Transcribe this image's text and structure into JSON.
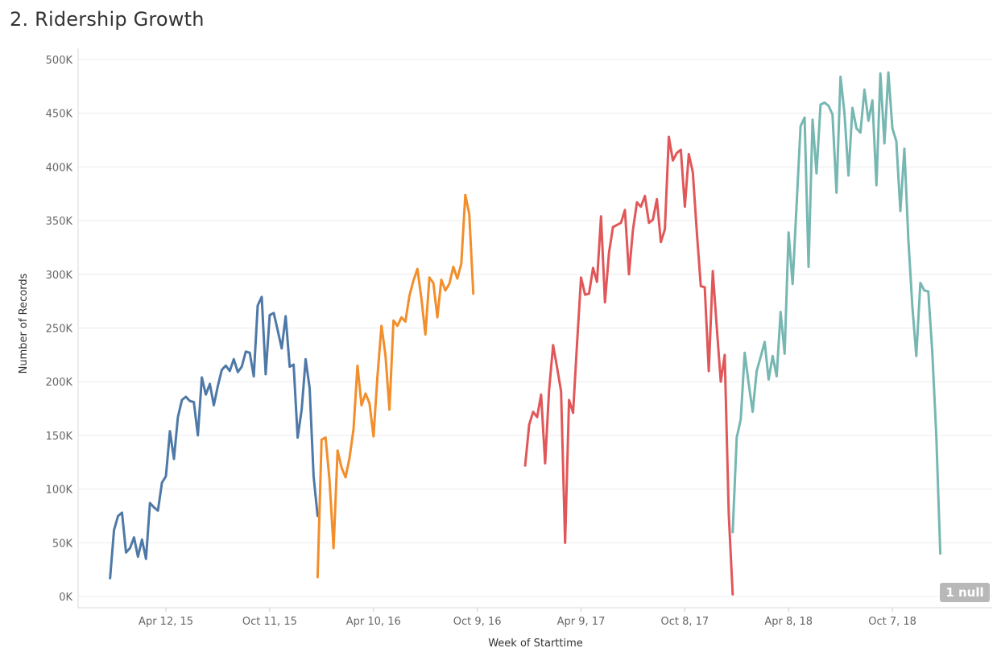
{
  "chart_data": {
    "type": "line",
    "title": "2. Ridership Growth",
    "xlabel": "Week of Starttime",
    "ylabel": "Number of Records",
    "ylim": [
      0,
      500000
    ],
    "yticks": [
      0,
      50000,
      100000,
      150000,
      200000,
      250000,
      300000,
      350000,
      400000,
      450000,
      500000
    ],
    "ytick_labels": [
      "0K",
      "50K",
      "100K",
      "150K",
      "200K",
      "250K",
      "300K",
      "350K",
      "400K",
      "450K",
      "500K"
    ],
    "xticks": [
      "2015-04-12",
      "2015-10-11",
      "2016-04-10",
      "2016-10-09",
      "2017-04-09",
      "2017-10-08",
      "2018-04-08",
      "2018-10-07"
    ],
    "xtick_labels": [
      "Apr 12, 15",
      "Oct 11, 15",
      "Apr 10, 16",
      "Oct 9, 16",
      "Apr 9, 17",
      "Oct 8, 17",
      "Apr 8, 18",
      "Oct 7, 18"
    ],
    "xlim": [
      "2014-11-09",
      "2019-03-31"
    ],
    "grid": true,
    "null_indicator": "1 null",
    "series": [
      {
        "color": "#4e79a7",
        "points": [
          [
            "2015-01-04",
            17000
          ],
          [
            "2015-01-11",
            62000
          ],
          [
            "2015-01-18",
            75000
          ],
          [
            "2015-01-25",
            78000
          ],
          [
            "2015-02-01",
            41000
          ],
          [
            "2015-02-08",
            45000
          ],
          [
            "2015-02-15",
            55000
          ],
          [
            "2015-02-22",
            37000
          ],
          [
            "2015-03-01",
            53000
          ],
          [
            "2015-03-08",
            35000
          ],
          [
            "2015-03-15",
            87000
          ],
          [
            "2015-03-22",
            83000
          ],
          [
            "2015-03-29",
            80000
          ],
          [
            "2015-04-05",
            106000
          ],
          [
            "2015-04-12",
            112000
          ],
          [
            "2015-04-19",
            154000
          ],
          [
            "2015-04-26",
            128000
          ],
          [
            "2015-05-03",
            167000
          ],
          [
            "2015-05-10",
            183000
          ],
          [
            "2015-05-17",
            186000
          ],
          [
            "2015-05-24",
            182000
          ],
          [
            "2015-05-31",
            181000
          ],
          [
            "2015-06-07",
            150000
          ],
          [
            "2015-06-14",
            204000
          ],
          [
            "2015-06-21",
            188000
          ],
          [
            "2015-06-28",
            198000
          ],
          [
            "2015-07-05",
            178000
          ],
          [
            "2015-07-12",
            196000
          ],
          [
            "2015-07-19",
            211000
          ],
          [
            "2015-07-26",
            215000
          ],
          [
            "2015-08-02",
            210000
          ],
          [
            "2015-08-09",
            221000
          ],
          [
            "2015-08-16",
            209000
          ],
          [
            "2015-08-23",
            214000
          ],
          [
            "2015-08-30",
            228000
          ],
          [
            "2015-09-06",
            227000
          ],
          [
            "2015-09-13",
            205000
          ],
          [
            "2015-09-20",
            271000
          ],
          [
            "2015-09-27",
            279000
          ],
          [
            "2015-10-04",
            207000
          ],
          [
            "2015-10-11",
            262000
          ],
          [
            "2015-10-18",
            264000
          ],
          [
            "2015-10-25",
            248000
          ],
          [
            "2015-11-01",
            231000
          ],
          [
            "2015-11-08",
            261000
          ],
          [
            "2015-11-15",
            214000
          ],
          [
            "2015-11-22",
            216000
          ],
          [
            "2015-11-29",
            148000
          ],
          [
            "2015-12-06",
            174000
          ],
          [
            "2015-12-13",
            221000
          ],
          [
            "2015-12-20",
            194000
          ],
          [
            "2015-12-27",
            112000
          ],
          [
            "2016-01-03",
            75000
          ]
        ]
      },
      {
        "color": "#f28e2b",
        "points": [
          [
            "2016-01-03",
            18000
          ],
          [
            "2016-01-10",
            146000
          ],
          [
            "2016-01-17",
            148000
          ],
          [
            "2016-01-24",
            108000
          ],
          [
            "2016-01-31",
            45000
          ],
          [
            "2016-02-07",
            136000
          ],
          [
            "2016-02-14",
            120000
          ],
          [
            "2016-02-21",
            111000
          ],
          [
            "2016-02-28",
            129000
          ],
          [
            "2016-03-06",
            156000
          ],
          [
            "2016-03-13",
            215000
          ],
          [
            "2016-03-20",
            178000
          ],
          [
            "2016-03-27",
            189000
          ],
          [
            "2016-04-03",
            180000
          ],
          [
            "2016-04-10",
            149000
          ],
          [
            "2016-04-17",
            205000
          ],
          [
            "2016-04-24",
            252000
          ],
          [
            "2016-05-01",
            225000
          ],
          [
            "2016-05-08",
            174000
          ],
          [
            "2016-05-15",
            257000
          ],
          [
            "2016-05-22",
            252000
          ],
          [
            "2016-05-29",
            260000
          ],
          [
            "2016-06-05",
            256000
          ],
          [
            "2016-06-12",
            280000
          ],
          [
            "2016-06-19",
            294000
          ],
          [
            "2016-06-26",
            305000
          ],
          [
            "2016-07-03",
            278000
          ],
          [
            "2016-07-10",
            244000
          ],
          [
            "2016-07-17",
            297000
          ],
          [
            "2016-07-24",
            292000
          ],
          [
            "2016-07-31",
            260000
          ],
          [
            "2016-08-07",
            295000
          ],
          [
            "2016-08-14",
            285000
          ],
          [
            "2016-08-21",
            291000
          ],
          [
            "2016-08-28",
            307000
          ],
          [
            "2016-09-04",
            296000
          ],
          [
            "2016-09-11",
            310000
          ],
          [
            "2016-09-18",
            374000
          ],
          [
            "2016-09-25",
            356000
          ],
          [
            "2016-10-02",
            282000
          ]
        ]
      },
      {
        "color": "#e15759",
        "points": [
          [
            "2017-01-01",
            122000
          ],
          [
            "2017-01-08",
            160000
          ],
          [
            "2017-01-15",
            172000
          ],
          [
            "2017-01-22",
            167000
          ],
          [
            "2017-01-29",
            188000
          ],
          [
            "2017-02-05",
            124000
          ],
          [
            "2017-02-12",
            192000
          ],
          [
            "2017-02-19",
            234000
          ],
          [
            "2017-02-26",
            213000
          ],
          [
            "2017-03-05",
            191000
          ],
          [
            "2017-03-12",
            50000
          ],
          [
            "2017-03-19",
            183000
          ],
          [
            "2017-03-26",
            171000
          ],
          [
            "2017-04-02",
            235000
          ],
          [
            "2017-04-09",
            297000
          ],
          [
            "2017-04-16",
            281000
          ],
          [
            "2017-04-23",
            282000
          ],
          [
            "2017-04-30",
            306000
          ],
          [
            "2017-05-07",
            293000
          ],
          [
            "2017-05-14",
            354000
          ],
          [
            "2017-05-21",
            274000
          ],
          [
            "2017-05-28",
            320000
          ],
          [
            "2017-06-04",
            344000
          ],
          [
            "2017-06-11",
            346000
          ],
          [
            "2017-06-18",
            348000
          ],
          [
            "2017-06-25",
            360000
          ],
          [
            "2017-07-02",
            300000
          ],
          [
            "2017-07-09",
            341000
          ],
          [
            "2017-07-16",
            367000
          ],
          [
            "2017-07-23",
            363000
          ],
          [
            "2017-07-30",
            373000
          ],
          [
            "2017-08-06",
            348000
          ],
          [
            "2017-08-13",
            351000
          ],
          [
            "2017-08-20",
            370000
          ],
          [
            "2017-08-27",
            330000
          ],
          [
            "2017-09-03",
            342000
          ],
          [
            "2017-09-10",
            428000
          ],
          [
            "2017-09-17",
            406000
          ],
          [
            "2017-09-24",
            413000
          ],
          [
            "2017-10-01",
            416000
          ],
          [
            "2017-10-08",
            363000
          ],
          [
            "2017-10-15",
            412000
          ],
          [
            "2017-10-22",
            395000
          ],
          [
            "2017-10-29",
            340000
          ],
          [
            "2017-11-05",
            289000
          ],
          [
            "2017-11-12",
            288000
          ],
          [
            "2017-11-19",
            210000
          ],
          [
            "2017-11-26",
            303000
          ],
          [
            "2017-12-03",
            251000
          ],
          [
            "2017-12-10",
            200000
          ],
          [
            "2017-12-17",
            225000
          ],
          [
            "2017-12-24",
            77000
          ],
          [
            "2017-12-31",
            2000
          ]
        ]
      },
      {
        "color": "#76b7b2",
        "points": [
          [
            "2017-12-31",
            60000
          ],
          [
            "2018-01-07",
            148000
          ],
          [
            "2018-01-14",
            165000
          ],
          [
            "2018-01-21",
            227000
          ],
          [
            "2018-01-28",
            198000
          ],
          [
            "2018-02-04",
            172000
          ],
          [
            "2018-02-11",
            210000
          ],
          [
            "2018-02-18",
            223000
          ],
          [
            "2018-02-25",
            237000
          ],
          [
            "2018-03-04",
            202000
          ],
          [
            "2018-03-11",
            224000
          ],
          [
            "2018-03-18",
            205000
          ],
          [
            "2018-03-25",
            265000
          ],
          [
            "2018-04-01",
            226000
          ],
          [
            "2018-04-08",
            339000
          ],
          [
            "2018-04-15",
            291000
          ],
          [
            "2018-04-22",
            364000
          ],
          [
            "2018-04-29",
            438000
          ],
          [
            "2018-05-06",
            446000
          ],
          [
            "2018-05-13",
            307000
          ],
          [
            "2018-05-20",
            444000
          ],
          [
            "2018-05-27",
            394000
          ],
          [
            "2018-06-03",
            458000
          ],
          [
            "2018-06-10",
            460000
          ],
          [
            "2018-06-17",
            457000
          ],
          [
            "2018-06-24",
            449000
          ],
          [
            "2018-07-01",
            376000
          ],
          [
            "2018-07-08",
            484000
          ],
          [
            "2018-07-15",
            450000
          ],
          [
            "2018-07-22",
            392000
          ],
          [
            "2018-07-29",
            455000
          ],
          [
            "2018-08-05",
            436000
          ],
          [
            "2018-08-12",
            432000
          ],
          [
            "2018-08-19",
            472000
          ],
          [
            "2018-08-26",
            443000
          ],
          [
            "2018-09-02",
            462000
          ],
          [
            "2018-09-09",
            383000
          ],
          [
            "2018-09-16",
            487000
          ],
          [
            "2018-09-23",
            422000
          ],
          [
            "2018-09-30",
            488000
          ],
          [
            "2018-10-07",
            436000
          ],
          [
            "2018-10-14",
            424000
          ],
          [
            "2018-10-21",
            359000
          ],
          [
            "2018-10-28",
            417000
          ],
          [
            "2018-11-04",
            333000
          ],
          [
            "2018-11-11",
            270000
          ],
          [
            "2018-11-18",
            224000
          ],
          [
            "2018-11-25",
            292000
          ],
          [
            "2018-12-02",
            285000
          ],
          [
            "2018-12-09",
            284000
          ],
          [
            "2018-12-16",
            227000
          ],
          [
            "2018-12-23",
            150000
          ],
          [
            "2018-12-30",
            40000
          ]
        ]
      }
    ]
  }
}
